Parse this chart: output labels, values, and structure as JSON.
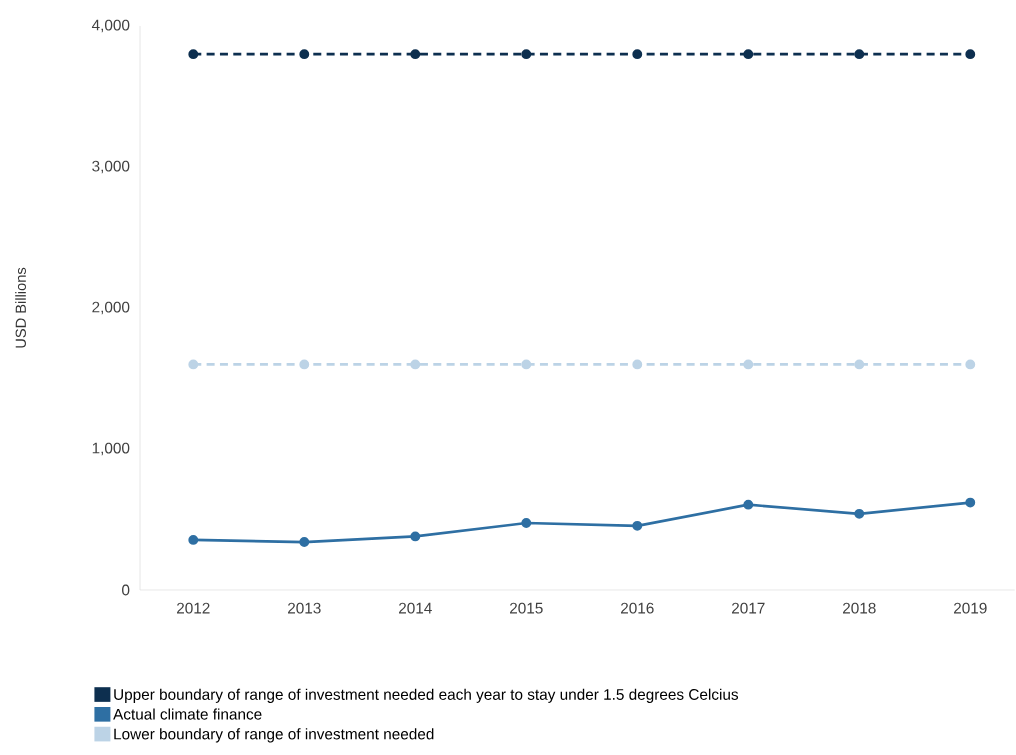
{
  "chart_data": {
    "type": "line",
    "ylabel": "USD Billions",
    "categories": [
      "2012",
      "2013",
      "2014",
      "2015",
      "2016",
      "2017",
      "2018",
      "2019"
    ],
    "series": [
      {
        "name": "Upper boundary of range of investment needed each year to stay under 1.5 degrees Celcius",
        "color": "#0d2f4f",
        "line_style": "dashed",
        "values": [
          3800,
          3800,
          3800,
          3800,
          3800,
          3800,
          3800,
          3800
        ]
      },
      {
        "name": "Actual climate finance",
        "color": "#2e6fa3",
        "line_style": "solid",
        "values": [
          355,
          340,
          380,
          475,
          455,
          605,
          540,
          620
        ]
      },
      {
        "name": "Lower boundary of range of investment needed",
        "color": "#bcd3e6",
        "line_style": "dashed",
        "values": [
          1600,
          1600,
          1600,
          1600,
          1600,
          1600,
          1600,
          1600
        ]
      }
    ],
    "ylim": [
      0,
      4000
    ],
    "yticks": [
      0,
      {
        "value": 1000,
        "label": "1,000"
      },
      {
        "value": 2000,
        "label": "2,000"
      },
      {
        "value": 3000,
        "label": "3,000"
      },
      {
        "value": 4000,
        "label": "4,000"
      }
    ],
    "marker": "circle",
    "legend": "bottom"
  }
}
